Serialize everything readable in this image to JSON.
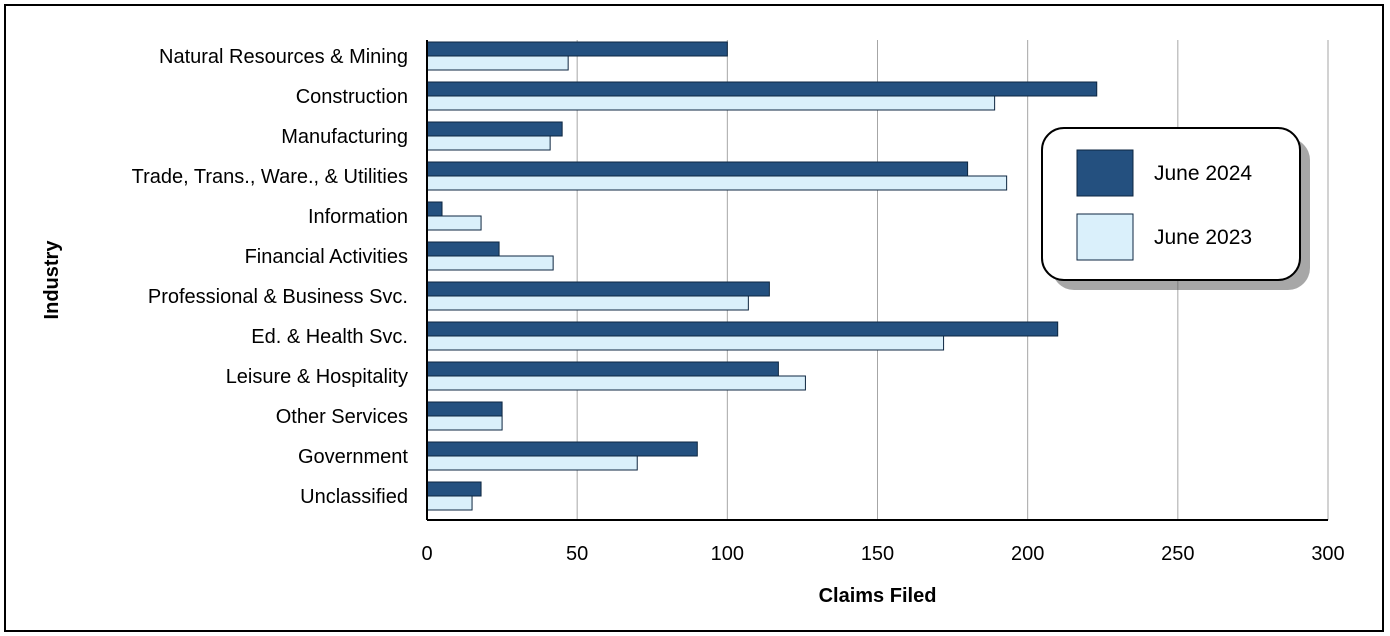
{
  "chart_data": {
    "type": "bar",
    "orientation": "horizontal",
    "title": "",
    "xlabel": "Claims Filed",
    "ylabel": "Industry",
    "xlim": [
      0,
      300
    ],
    "xticks": [
      0,
      50,
      100,
      150,
      200,
      250,
      300
    ],
    "grid": "vertical",
    "legend_position": "right",
    "categories": [
      "Natural Resources & Mining",
      "Construction",
      "Manufacturing",
      "Trade, Trans., Ware., & Utilities",
      "Information",
      "Financial Activities",
      "Professional & Business Svc.",
      "Ed. & Health Svc.",
      "Leisure & Hospitality",
      "Other Services",
      "Government",
      "Unclassified"
    ],
    "series": [
      {
        "name": "June 2024",
        "color": "#24507f",
        "values": [
          100,
          223,
          45,
          180,
          5,
          24,
          114,
          210,
          117,
          25,
          90,
          18
        ]
      },
      {
        "name": "June 2023",
        "color": "#daf0fb",
        "values": [
          47,
          189,
          41,
          193,
          18,
          42,
          107,
          172,
          126,
          25,
          70,
          15
        ]
      }
    ]
  }
}
